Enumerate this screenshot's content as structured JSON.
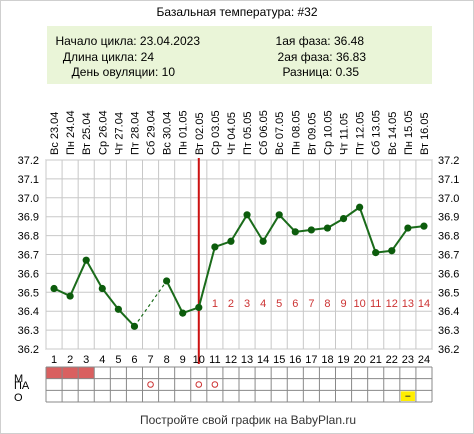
{
  "title": "Базальная температура: #32",
  "footer": "Постройте свой график на BabyPlan.ru",
  "info": {
    "cycle_start": "Начало цикла: 23.04.2023",
    "cycle_length": "Длина цикла: 24",
    "ovulation_day": "День овуляции: 10",
    "phase1": "1ая фаза: 36.48",
    "phase2": "2ая фаза: 36.83",
    "difference": "Разница: 0.35"
  },
  "rows": {
    "m": "М",
    "pa": "ПА",
    "o": "О"
  },
  "colors": {
    "line": "#1a6b1a",
    "point": "#0c5c0c",
    "ovulation": "#cc1111",
    "phase_numbers": "#cc3333",
    "info_bg": "#eaf5d8",
    "menses": "#d96060",
    "marker": "#cc3333",
    "note": "#ffee00"
  },
  "chart_data": {
    "type": "line",
    "ylim": [
      36.2,
      37.2
    ],
    "yticks": [
      "36.2",
      "36.3",
      "36.4",
      "36.5",
      "36.6",
      "36.7",
      "36.8",
      "36.9",
      "37.0",
      "37.1",
      "37.2"
    ],
    "days": [
      1,
      2,
      3,
      4,
      5,
      6,
      7,
      8,
      9,
      10,
      11,
      12,
      13,
      14,
      15,
      16,
      17,
      18,
      19,
      20,
      21,
      22,
      23,
      24
    ],
    "weekdays": [
      "Вс",
      "Пн",
      "Вт",
      "Ср",
      "Чт",
      "Пт",
      "Сб",
      "Вс",
      "Пн",
      "Вт",
      "Ср",
      "Чт",
      "Пт",
      "Сб",
      "Вс",
      "Пн",
      "Вт",
      "Ср",
      "Чт",
      "Пт",
      "Сб",
      "Вс",
      "Пн",
      "Вт"
    ],
    "dates": [
      "23.04",
      "24.04",
      "25.04",
      "26.04",
      "27.04",
      "28.04",
      "29.04",
      "30.04",
      "01.05",
      "02.05",
      "03.05",
      "04.05",
      "05.05",
      "06.05",
      "07.05",
      "08.05",
      "09.05",
      "10.05",
      "11.05",
      "12.05",
      "13.05",
      "14.05",
      "15.05",
      "16.05"
    ],
    "temperatures": [
      36.52,
      36.48,
      36.67,
      36.52,
      36.41,
      36.32,
      null,
      36.56,
      36.39,
      36.42,
      36.74,
      36.77,
      36.91,
      36.77,
      36.91,
      36.82,
      36.83,
      36.84,
      36.89,
      36.95,
      36.71,
      36.72,
      36.84,
      36.85
    ],
    "dashed_segments": [
      [
        6,
        8
      ]
    ],
    "ovulation_day": 10,
    "phase2_labels": [
      "1",
      "2",
      "3",
      "4",
      "5",
      "6",
      "7",
      "8",
      "9",
      "10",
      "11",
      "12",
      "13",
      "14"
    ],
    "menses_days": [
      1,
      2,
      3
    ],
    "pa_marks": [
      7,
      10,
      11
    ],
    "o_marks": [
      23
    ]
  }
}
